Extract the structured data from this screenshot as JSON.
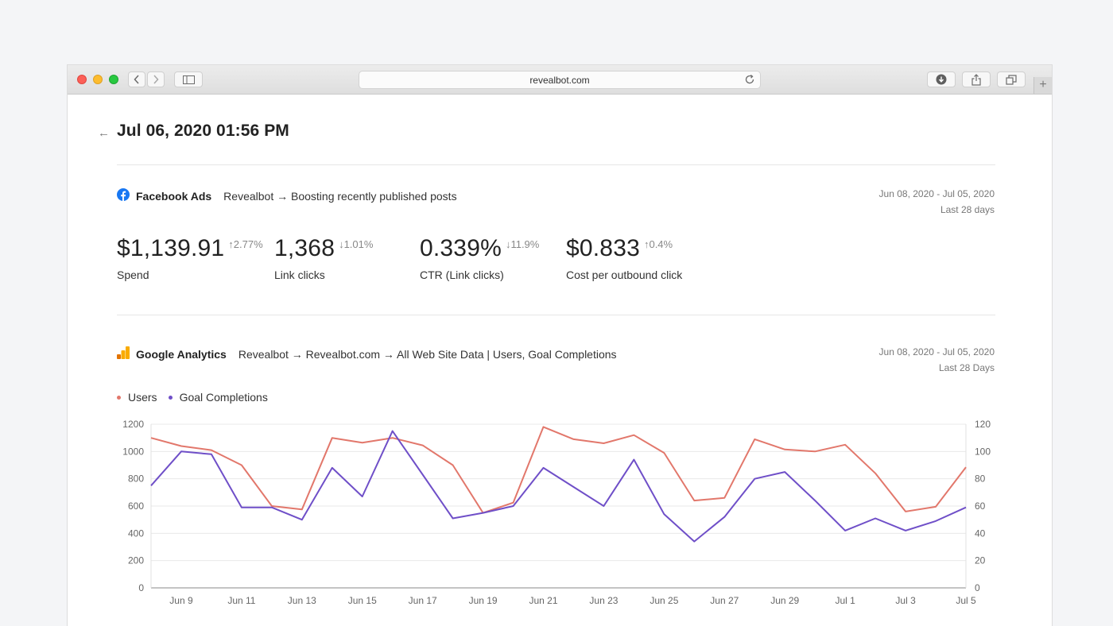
{
  "browser": {
    "url": "revealbot.com"
  },
  "page": {
    "title": "Jul 06, 2020 01:56 PM"
  },
  "facebook": {
    "name": "Facebook Ads",
    "path": "Revealbot → Boosting recently published posts",
    "date_range": "Jun 08, 2020 - Jul 05, 2020",
    "period": "Last 28 days",
    "metrics": [
      {
        "value": "$1,139.91",
        "change": "↑2.77%",
        "label": "Spend"
      },
      {
        "value": "1,368",
        "change": "↓1.01%",
        "label": "Link clicks"
      },
      {
        "value": "0.339%",
        "change": "↓11.9%",
        "label": "CTR (Link clicks)"
      },
      {
        "value": "$0.833",
        "change": "↑0.4%",
        "label": "Cost per outbound click"
      }
    ]
  },
  "analytics": {
    "name": "Google Analytics",
    "path": "Revealbot → Revealbot.com → All Web Site Data | Users, Goal Completions",
    "date_range": "Jun 08, 2020 - Jul 05, 2020",
    "period": "Last 28 Days"
  },
  "chart_data": {
    "type": "line",
    "x": [
      "Jun 8",
      "Jun 9",
      "Jun 10",
      "Jun 11",
      "Jun 12",
      "Jun 13",
      "Jun 14",
      "Jun 15",
      "Jun 16",
      "Jun 17",
      "Jun 18",
      "Jun 19",
      "Jun 20",
      "Jun 21",
      "Jun 22",
      "Jun 23",
      "Jun 24",
      "Jun 25",
      "Jun 26",
      "Jun 27",
      "Jun 28",
      "Jun 29",
      "Jun 30",
      "Jul 1",
      "Jul 2",
      "Jul 3",
      "Jul 4",
      "Jul 5"
    ],
    "x_tick_labels": [
      "Jun 9",
      "Jun 11",
      "Jun 13",
      "Jun 15",
      "Jun 17",
      "Jun 19",
      "Jun 21",
      "Jun 23",
      "Jun 25",
      "Jun 27",
      "Jun 29",
      "Jul 1",
      "Jul 3",
      "Jul 5"
    ],
    "series": [
      {
        "name": "Users",
        "axis": "left",
        "color": "#e2776b",
        "values": [
          1100,
          1040,
          1010,
          900,
          600,
          575,
          1100,
          1065,
          1100,
          1045,
          900,
          550,
          625,
          1180,
          1090,
          1060,
          1120,
          990,
          640,
          660,
          1090,
          1015,
          1000,
          1050,
          840,
          560,
          595,
          885
        ]
      },
      {
        "name": "Goal Completions",
        "axis": "right",
        "color": "#6f4fc8",
        "values": [
          75,
          100,
          98,
          59,
          59,
          50,
          88,
          67,
          115,
          83,
          51,
          55,
          60,
          88,
          74,
          60,
          94,
          54,
          34,
          52,
          80,
          85,
          64,
          42,
          51,
          42,
          49,
          59
        ]
      }
    ],
    "y_left": {
      "ticks": [
        0,
        200,
        400,
        600,
        800,
        1000,
        1200
      ],
      "ylim": [
        0,
        1200
      ]
    },
    "y_right": {
      "ticks": [
        0,
        20,
        40,
        60,
        80,
        100,
        120
      ],
      "ylim": [
        0,
        120
      ]
    },
    "grid": true,
    "legend": "top-left"
  }
}
